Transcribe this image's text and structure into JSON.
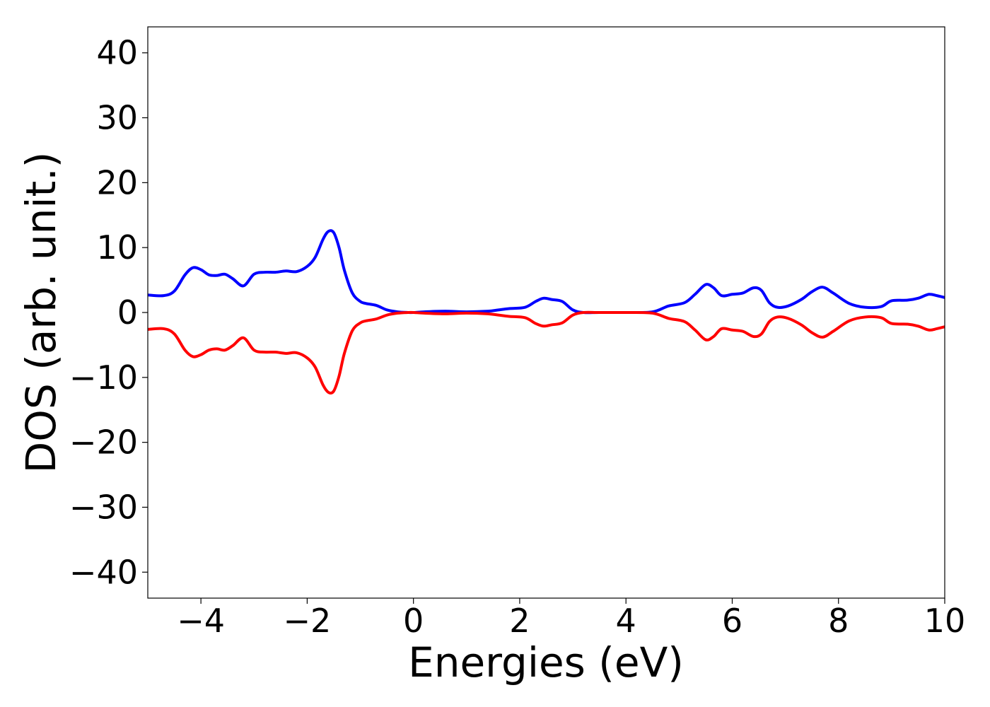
{
  "chart_data": {
    "type": "line",
    "title": "",
    "xlabel": "Energies (eV)",
    "ylabel": "DOS (arb. unit.)",
    "xlim": [
      -5,
      10
    ],
    "ylim": [
      -44,
      44
    ],
    "xticks": [
      -4,
      -2,
      0,
      2,
      4,
      6,
      8,
      10
    ],
    "xtick_labels": [
      "−4",
      "−2",
      "0",
      "2",
      "4",
      "6",
      "8",
      "10"
    ],
    "yticks": [
      40,
      30,
      20,
      10,
      0,
      -10,
      -20,
      -30,
      -40
    ],
    "ytick_labels": [
      "40",
      "30",
      "20",
      "10",
      "0",
      "−10",
      "−20",
      "−30",
      "−40"
    ],
    "grid": false,
    "legend": "none",
    "series": [
      {
        "color": "#0000ff",
        "x": [
          -5,
          -4.7,
          -4.5,
          -4.3,
          -4.15,
          -4.0,
          -3.85,
          -3.7,
          -3.55,
          -3.4,
          -3.2,
          -3.0,
          -2.8,
          -2.6,
          -2.4,
          -2.2,
          -2.0,
          -1.85,
          -1.7,
          -1.6,
          -1.5,
          -1.4,
          -1.3,
          -1.15,
          -1.0,
          -0.9,
          -0.7,
          -0.5,
          -0.3,
          -0.1,
          0.0,
          0.2,
          0.6,
          1.0,
          1.4,
          1.6,
          1.8,
          2.1,
          2.3,
          2.45,
          2.6,
          2.8,
          3.0,
          3.2,
          3.5,
          4.0,
          4.5,
          4.8,
          5.1,
          5.3,
          5.5,
          5.65,
          5.8,
          6.0,
          6.2,
          6.4,
          6.55,
          6.7,
          6.85,
          7.05,
          7.3,
          7.5,
          7.7,
          7.9,
          8.2,
          8.5,
          8.8,
          9.0,
          9.3,
          9.5,
          9.7,
          9.85,
          10.0
        ],
        "y": [
          2.7,
          2.6,
          3.3,
          5.8,
          6.9,
          6.6,
          5.8,
          5.7,
          5.9,
          5.2,
          4.1,
          5.9,
          6.2,
          6.2,
          6.4,
          6.3,
          7.1,
          8.5,
          11.3,
          12.5,
          12.3,
          10.0,
          6.5,
          3.0,
          1.7,
          1.4,
          1.1,
          0.4,
          0.1,
          0.0,
          0.0,
          0.1,
          0.2,
          0.1,
          0.2,
          0.4,
          0.6,
          0.8,
          1.7,
          2.2,
          2.0,
          1.7,
          0.4,
          0.0,
          0.0,
          0.0,
          0.1,
          1.0,
          1.5,
          2.8,
          4.3,
          3.8,
          2.6,
          2.8,
          3.0,
          3.8,
          3.4,
          1.5,
          0.8,
          1.0,
          2.0,
          3.2,
          3.9,
          3.0,
          1.4,
          0.8,
          0.9,
          1.8,
          1.9,
          2.2,
          2.8,
          2.6,
          2.3
        ]
      },
      {
        "color": "#ff0000",
        "x": [
          -5,
          -4.7,
          -4.5,
          -4.3,
          -4.15,
          -4.0,
          -3.85,
          -3.7,
          -3.55,
          -3.4,
          -3.2,
          -3.0,
          -2.8,
          -2.6,
          -2.4,
          -2.2,
          -2.0,
          -1.85,
          -1.7,
          -1.6,
          -1.5,
          -1.4,
          -1.3,
          -1.15,
          -1.0,
          -0.9,
          -0.7,
          -0.5,
          -0.3,
          -0.1,
          0.0,
          0.2,
          0.6,
          1.0,
          1.4,
          1.6,
          1.8,
          2.1,
          2.3,
          2.45,
          2.6,
          2.8,
          3.0,
          3.2,
          3.5,
          4.0,
          4.5,
          4.8,
          5.1,
          5.3,
          5.5,
          5.65,
          5.8,
          6.0,
          6.2,
          6.4,
          6.55,
          6.7,
          6.85,
          7.05,
          7.3,
          7.5,
          7.7,
          7.9,
          8.2,
          8.5,
          8.8,
          9.0,
          9.3,
          9.5,
          9.7,
          9.85,
          10.0
        ],
        "y": [
          -2.6,
          -2.5,
          -3.3,
          -5.8,
          -6.8,
          -6.5,
          -5.8,
          -5.6,
          -5.8,
          -5.1,
          -3.9,
          -5.8,
          -6.1,
          -6.1,
          -6.3,
          -6.2,
          -7.0,
          -8.4,
          -11.2,
          -12.3,
          -12.1,
          -9.8,
          -6.3,
          -2.8,
          -1.6,
          -1.3,
          -1.0,
          -0.4,
          -0.1,
          0.0,
          0.0,
          -0.1,
          -0.2,
          -0.1,
          -0.2,
          -0.4,
          -0.6,
          -0.8,
          -1.7,
          -2.1,
          -1.9,
          -1.6,
          -0.4,
          0.0,
          0.0,
          0.0,
          -0.1,
          -0.9,
          -1.4,
          -2.7,
          -4.2,
          -3.7,
          -2.5,
          -2.7,
          -2.9,
          -3.7,
          -3.3,
          -1.4,
          -0.7,
          -0.9,
          -1.9,
          -3.1,
          -3.8,
          -2.9,
          -1.3,
          -0.7,
          -0.8,
          -1.7,
          -1.8,
          -2.1,
          -2.7,
          -2.5,
          -2.2
        ]
      }
    ]
  }
}
